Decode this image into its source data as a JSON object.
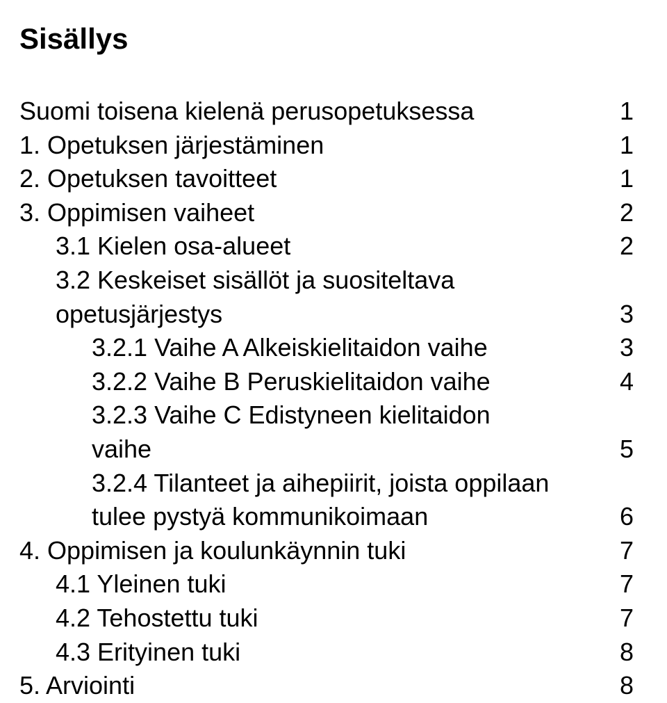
{
  "title": "Sisällys",
  "typography": {
    "title_fontsize_pt": 32,
    "body_fontsize_pt": 27,
    "font_family": "Arial",
    "title_weight": "bold",
    "body_weight": "normal",
    "color": "#000000",
    "background": "#ffffff"
  },
  "entries": [
    {
      "indent": 0,
      "lines": [
        "Suomi toisena kielenä perusopetuksessa"
      ],
      "page": "1"
    },
    {
      "indent": 0,
      "lines": [
        "1. Opetuksen järjestäminen"
      ],
      "page": "1"
    },
    {
      "indent": 0,
      "lines": [
        "2. Opetuksen tavoitteet"
      ],
      "page": "1"
    },
    {
      "indent": 0,
      "lines": [
        "3. Oppimisen vaiheet"
      ],
      "page": "2"
    },
    {
      "indent": 1,
      "lines": [
        "3.1 Kielen osa-alueet"
      ],
      "page": "2"
    },
    {
      "indent": 1,
      "lines": [
        "3.2 Keskeiset sisällöt ja suositeltava",
        "opetusjärjestys"
      ],
      "page": "3"
    },
    {
      "indent": 2,
      "lines": [
        "3.2.1 Vaihe A Alkeiskielitaidon vaihe"
      ],
      "page": "3"
    },
    {
      "indent": 2,
      "lines": [
        "3.2.2 Vaihe B Peruskielitaidon vaihe"
      ],
      "page": "4"
    },
    {
      "indent": 2,
      "lines": [
        "3.2.3 Vaihe C Edistyneen kielitaidon",
        "vaihe"
      ],
      "page": "5"
    },
    {
      "indent": 2,
      "lines": [
        "3.2.4 Tilanteet ja aihepiirit, joista oppilaan",
        "tulee pystyä kommunikoimaan"
      ],
      "page": "6"
    },
    {
      "indent": 0,
      "lines": [
        "4. Oppimisen ja koulunkäynnin tuki"
      ],
      "page": "7"
    },
    {
      "indent": 1,
      "lines": [
        "4.1 Yleinen tuki"
      ],
      "page": "7"
    },
    {
      "indent": 1,
      "lines": [
        "4.2 Tehostettu tuki"
      ],
      "page": "7"
    },
    {
      "indent": 1,
      "lines": [
        "4.3 Erityinen tuki"
      ],
      "page": "8"
    },
    {
      "indent": 0,
      "lines": [
        "5. Arviointi"
      ],
      "page": "8"
    }
  ]
}
